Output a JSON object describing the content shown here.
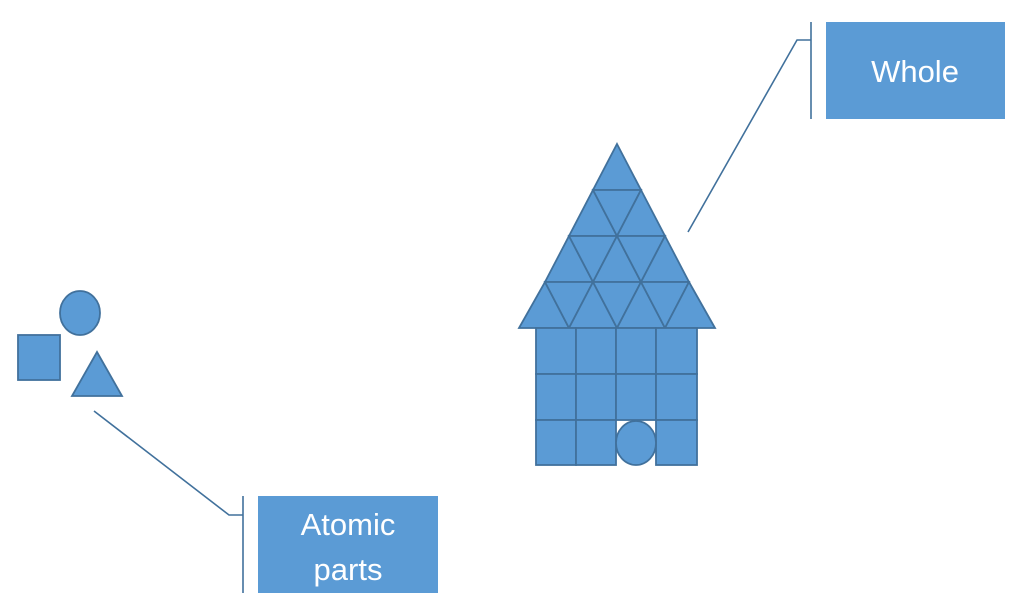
{
  "colors": {
    "shape_fill": "#5B9BD5",
    "shape_stroke": "#41719C",
    "callout_fill": "#5B9BD5",
    "callout_text": "#FFFFFF",
    "background": "#FFFFFF"
  },
  "callouts": {
    "whole": {
      "label": "Whole"
    },
    "atomic_parts": {
      "line1": "Atomic",
      "line2": "parts"
    }
  },
  "atomic_shapes": [
    "circle",
    "square",
    "triangle"
  ],
  "house": {
    "roof_rows": 4,
    "body_rows": 3,
    "body_columns": 4,
    "door_shape": "circle"
  }
}
